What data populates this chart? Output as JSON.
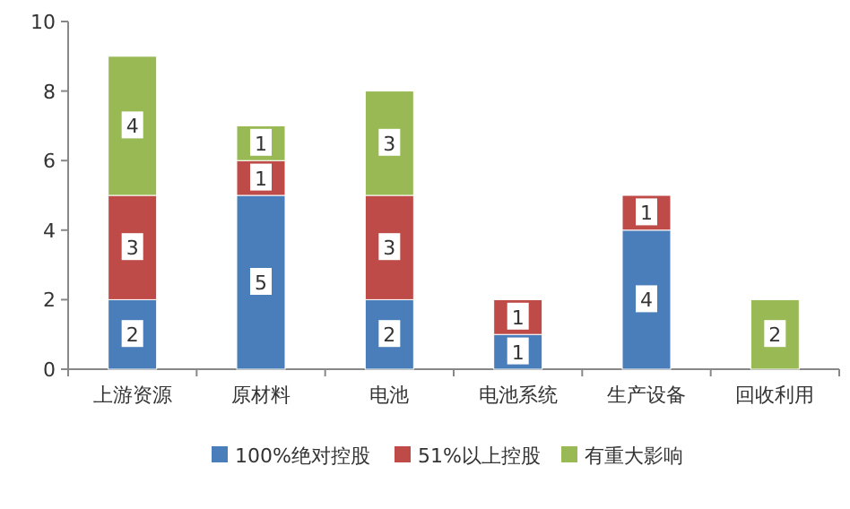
{
  "chart_data": {
    "type": "bar",
    "stacked": true,
    "categories": [
      "上游资源",
      "原材料",
      "电池",
      "电池系统",
      "生产设备",
      "回收利用"
    ],
    "series": [
      {
        "name": "100%绝对控股",
        "color": "#4a7ebb",
        "values": [
          2,
          5,
          2,
          1,
          4,
          null
        ]
      },
      {
        "name": "51%以上控股",
        "color": "#be4b48",
        "values": [
          3,
          1,
          3,
          1,
          1,
          null
        ]
      },
      {
        "name": "有重大影响",
        "color": "#98b954",
        "values": [
          4,
          1,
          3,
          null,
          null,
          2
        ]
      }
    ],
    "ylim": [
      0,
      10
    ],
    "yticks": [
      0,
      2,
      4,
      6,
      8,
      10
    ],
    "data_labels": true,
    "legend": "bottom",
    "grid": false
  }
}
